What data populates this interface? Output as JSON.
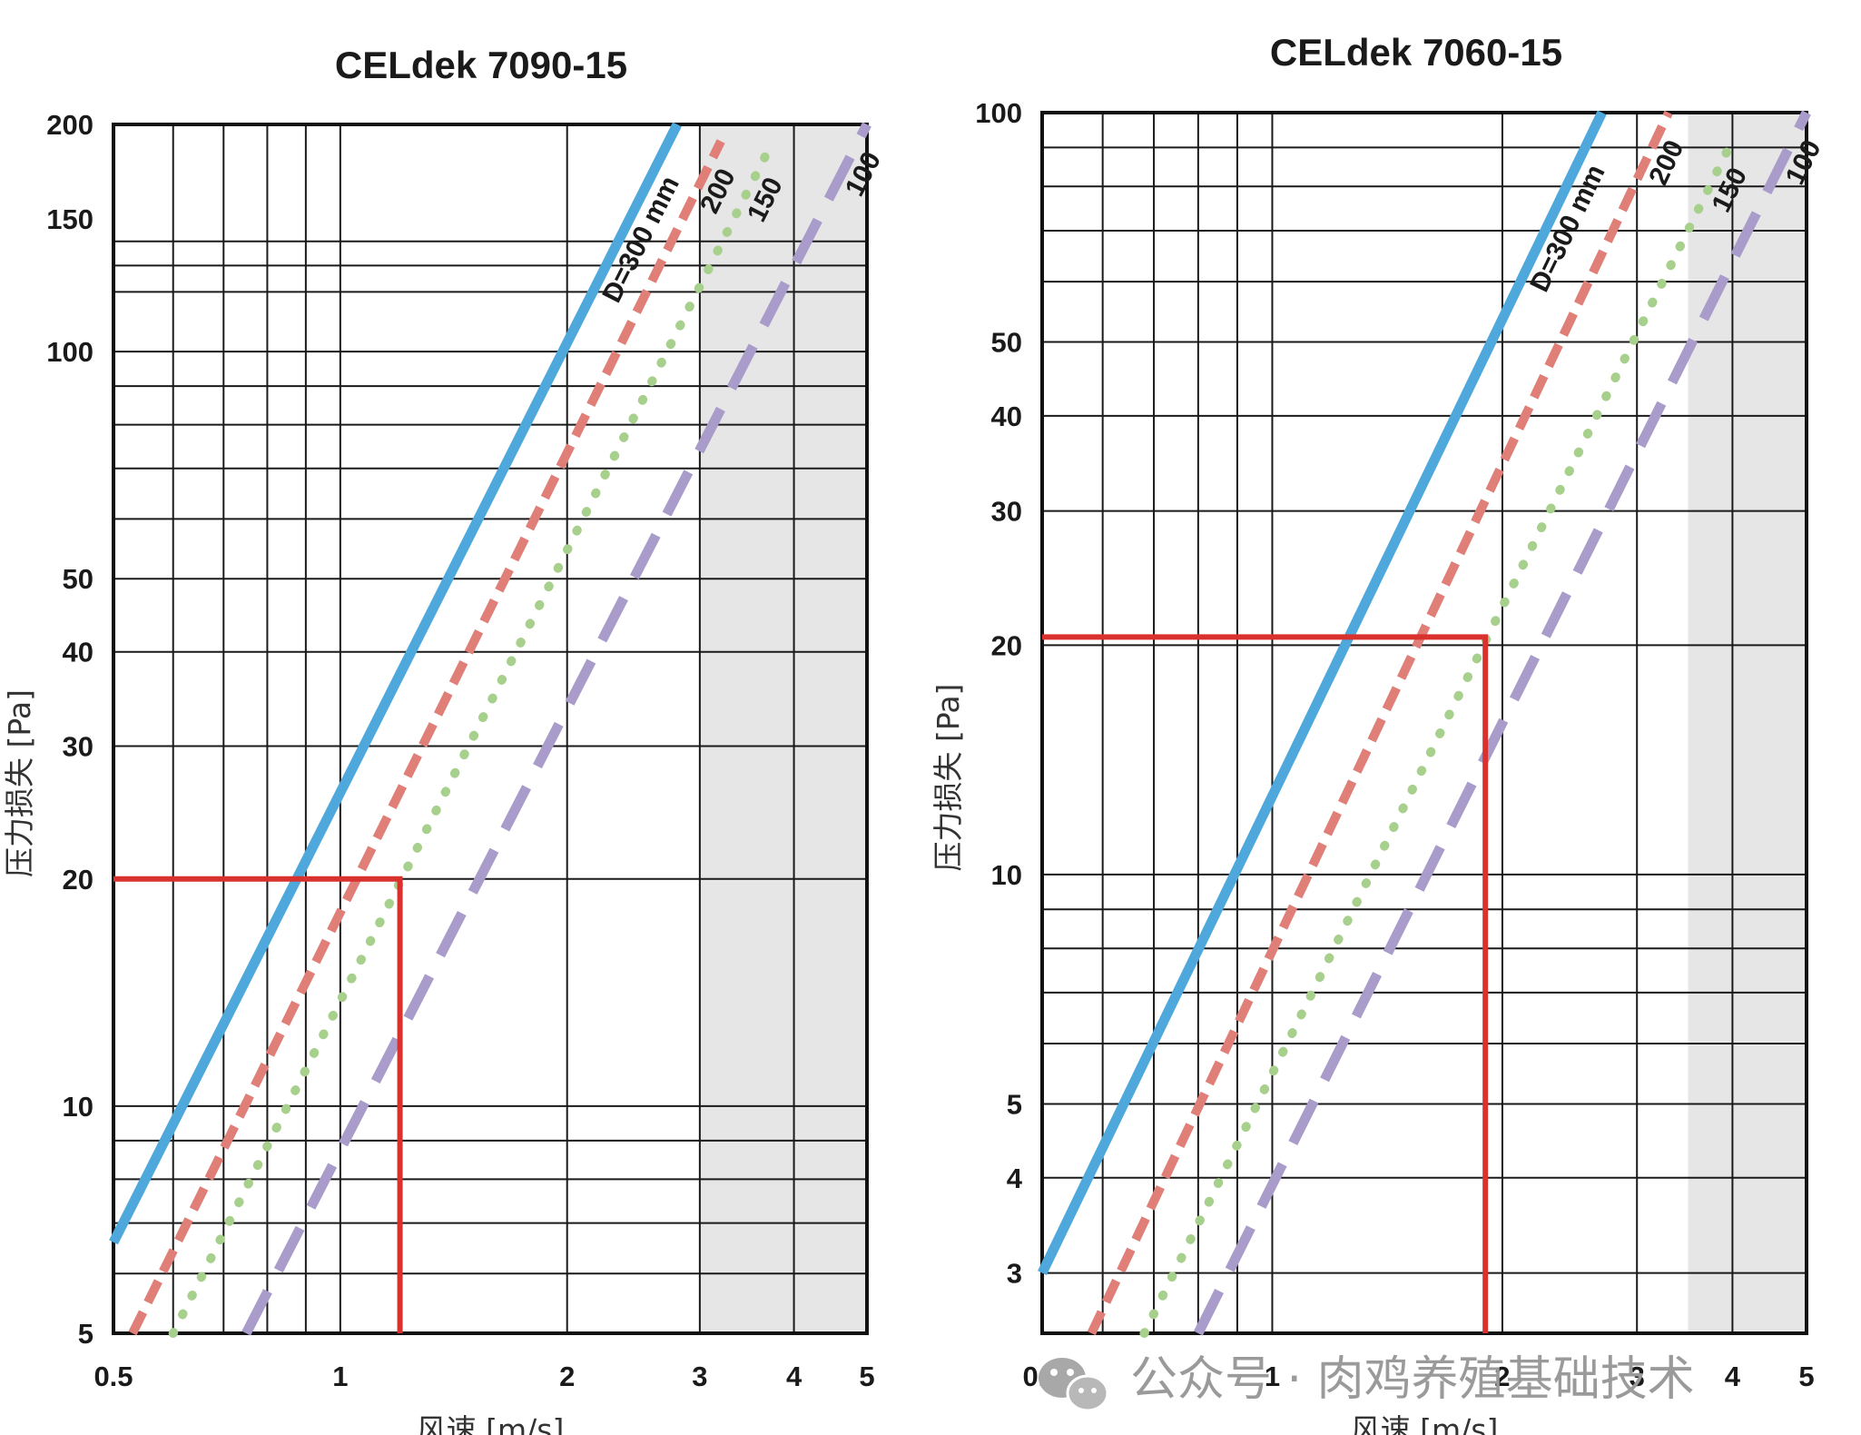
{
  "chart_data": [
    {
      "type": "line",
      "title": "CELdek 7090-15",
      "xlabel": "风速 [m/s]",
      "ylabel": "压力损失 [Pa]",
      "x_scale": "log",
      "y_scale": "log",
      "xlim": [
        0.5,
        5
      ],
      "ylim": [
        5,
        200
      ],
      "x_tick_labels": [
        "0.5",
        "1",
        "2",
        "3",
        "4",
        "5"
      ],
      "x_tick_values": [
        0.5,
        1,
        2,
        3,
        4,
        5
      ],
      "y_tick_labels": [
        "5",
        "10",
        "20",
        "30",
        "40",
        "50",
        "100",
        "150",
        "200"
      ],
      "y_tick_values": [
        5,
        10,
        20,
        30,
        40,
        50,
        100,
        150,
        200
      ],
      "shaded_x_range": [
        3,
        5
      ],
      "series": [
        {
          "label": "D=300 mm",
          "style": "solid",
          "color": "#4fa8dc",
          "x": [
            0.5,
            2.8
          ],
          "y": [
            6.6,
            200
          ]
        },
        {
          "label": "200",
          "style": "dashed",
          "color": "#e07f78",
          "x": [
            0.53,
            3.2
          ],
          "y": [
            5,
            190
          ]
        },
        {
          "label": "150",
          "style": "dotted",
          "color": "#a8d08d",
          "x": [
            0.6,
            3.7
          ],
          "y": [
            5,
            185
          ]
        },
        {
          "label": "100",
          "style": "longdash",
          "color": "#a99ccb",
          "x": [
            0.75,
            5
          ],
          "y": [
            5,
            200
          ]
        }
      ],
      "marker": {
        "color": "#d9322e",
        "x": 1.2,
        "y": 20
      }
    },
    {
      "type": "line",
      "title": "CELdek 7060-15",
      "xlabel": "风速 [m/s]",
      "ylabel": "压力损失 [Pa]",
      "x_scale": "log",
      "y_scale": "log",
      "xlim": [
        0.5,
        5
      ],
      "ylim": [
        2.5,
        100
      ],
      "x_tick_labels": [
        "0.5",
        "1",
        "2",
        "3",
        "4",
        "5"
      ],
      "x_tick_values": [
        0.5,
        1,
        2,
        3,
        4,
        5
      ],
      "y_tick_labels": [
        "3",
        "4",
        "5",
        "10",
        "20",
        "30",
        "40",
        "50",
        "100"
      ],
      "y_tick_values": [
        3,
        4,
        5,
        10,
        20,
        30,
        40,
        50,
        100
      ],
      "shaded_x_range": [
        3.5,
        5
      ],
      "series": [
        {
          "label": "D=300 mm",
          "style": "solid",
          "color": "#4fa8dc",
          "x": [
            0.5,
            2.7
          ],
          "y": [
            3,
            100
          ]
        },
        {
          "label": "200",
          "style": "dashed",
          "color": "#e07f78",
          "x": [
            0.58,
            3.3
          ],
          "y": [
            2.5,
            100
          ]
        },
        {
          "label": "150",
          "style": "dotted",
          "color": "#a8d08d",
          "x": [
            0.68,
            4
          ],
          "y": [
            2.5,
            92
          ]
        },
        {
          "label": "100",
          "style": "longdash",
          "color": "#a99ccb",
          "x": [
            0.8,
            5
          ],
          "y": [
            2.5,
            100
          ]
        }
      ],
      "marker": {
        "color": "#d9322e",
        "x": 1.9,
        "y": 20.5
      }
    }
  ],
  "watermark": {
    "text": "公众号 · 肉鸡养殖基础技术"
  }
}
